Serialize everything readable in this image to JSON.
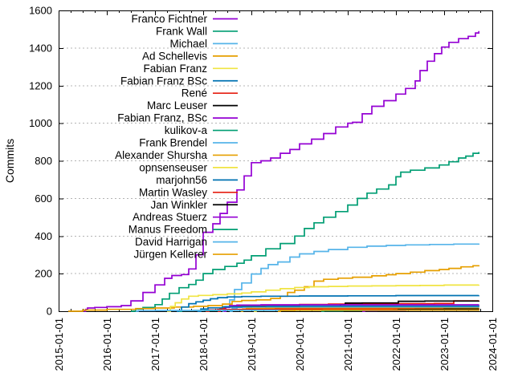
{
  "chart_data": {
    "type": "line",
    "title": "",
    "xlabel": "",
    "ylabel": "Commits",
    "background": "#ffffff",
    "axis_color": "#000000",
    "grid_color": "#b4b4b4",
    "grid": "horizontal-dotted",
    "legend_position": "top-left-inside",
    "ylim": [
      0,
      1600
    ],
    "y_ticks": [
      0,
      200,
      400,
      600,
      800,
      1000,
      1200,
      1400,
      1600
    ],
    "x_tick_years": [
      2015,
      2016,
      2017,
      2018,
      2019,
      2020,
      2021,
      2022,
      2023,
      2024
    ],
    "x_tick_labels": [
      "2015-01-01",
      "2016-01-01",
      "2017-01-01",
      "2018-01-01",
      "2019-01-01",
      "2020-01-01",
      "2021-01-01",
      "2022-01-01",
      "2023-01-01",
      "2024-01-01"
    ],
    "series": [
      {
        "name": "Franco Fichtner",
        "color": "#9400d3",
        "points": [
          [
            2015.52,
            0
          ],
          [
            2015.56,
            10
          ],
          [
            2015.6,
            17
          ],
          [
            2015.75,
            20
          ],
          [
            2016.0,
            24
          ],
          [
            2016.3,
            30
          ],
          [
            2016.5,
            55
          ],
          [
            2016.75,
            100
          ],
          [
            2017.0,
            140
          ],
          [
            2017.2,
            175
          ],
          [
            2017.35,
            190
          ],
          [
            2017.55,
            195
          ],
          [
            2017.7,
            225
          ],
          [
            2017.85,
            300
          ],
          [
            2018.0,
            420
          ],
          [
            2018.2,
            465
          ],
          [
            2018.35,
            520
          ],
          [
            2018.5,
            580
          ],
          [
            2018.7,
            645
          ],
          [
            2018.85,
            720
          ],
          [
            2019.0,
            790
          ],
          [
            2019.2,
            800
          ],
          [
            2019.4,
            815
          ],
          [
            2019.6,
            840
          ],
          [
            2019.8,
            860
          ],
          [
            2020.0,
            890
          ],
          [
            2020.25,
            915
          ],
          [
            2020.5,
            945
          ],
          [
            2020.75,
            980
          ],
          [
            2021.0,
            1000
          ],
          [
            2021.1,
            1005
          ],
          [
            2021.3,
            1050
          ],
          [
            2021.5,
            1090
          ],
          [
            2021.75,
            1120
          ],
          [
            2022.0,
            1155
          ],
          [
            2022.2,
            1185
          ],
          [
            2022.4,
            1225
          ],
          [
            2022.5,
            1280
          ],
          [
            2022.65,
            1330
          ],
          [
            2022.8,
            1370
          ],
          [
            2022.95,
            1405
          ],
          [
            2023.1,
            1430
          ],
          [
            2023.3,
            1450
          ],
          [
            2023.5,
            1462
          ],
          [
            2023.65,
            1480
          ],
          [
            2023.72,
            1490
          ]
        ]
      },
      {
        "name": "Frank Wall",
        "color": "#009e73",
        "points": [
          [
            2016.5,
            0
          ],
          [
            2016.6,
            12
          ],
          [
            2016.75,
            20
          ],
          [
            2017.0,
            35
          ],
          [
            2017.15,
            65
          ],
          [
            2017.3,
            95
          ],
          [
            2017.5,
            125
          ],
          [
            2017.7,
            142
          ],
          [
            2017.85,
            165
          ],
          [
            2018.0,
            200
          ],
          [
            2018.2,
            222
          ],
          [
            2018.45,
            238
          ],
          [
            2018.7,
            255
          ],
          [
            2018.85,
            272
          ],
          [
            2019.0,
            295
          ],
          [
            2019.3,
            332
          ],
          [
            2019.6,
            360
          ],
          [
            2019.9,
            400
          ],
          [
            2020.1,
            440
          ],
          [
            2020.3,
            470
          ],
          [
            2020.5,
            500
          ],
          [
            2020.75,
            530
          ],
          [
            2021.0,
            565
          ],
          [
            2021.2,
            600
          ],
          [
            2021.4,
            628
          ],
          [
            2021.6,
            650
          ],
          [
            2021.85,
            672
          ],
          [
            2022.0,
            715
          ],
          [
            2022.1,
            740
          ],
          [
            2022.3,
            750
          ],
          [
            2022.6,
            762
          ],
          [
            2022.9,
            778
          ],
          [
            2023.1,
            795
          ],
          [
            2023.3,
            815
          ],
          [
            2023.45,
            825
          ],
          [
            2023.6,
            840
          ],
          [
            2023.72,
            847
          ]
        ]
      },
      {
        "name": "Michael",
        "color": "#56b4e9",
        "points": [
          [
            2018.4,
            0
          ],
          [
            2018.45,
            25
          ],
          [
            2018.55,
            60
          ],
          [
            2018.65,
            115
          ],
          [
            2018.8,
            150
          ],
          [
            2019.0,
            198
          ],
          [
            2019.2,
            228
          ],
          [
            2019.35,
            248
          ],
          [
            2019.55,
            262
          ],
          [
            2019.8,
            288
          ],
          [
            2020.0,
            305
          ],
          [
            2020.3,
            318
          ],
          [
            2020.6,
            328
          ],
          [
            2021.0,
            340
          ],
          [
            2021.4,
            346
          ],
          [
            2021.8,
            350
          ],
          [
            2022.2,
            353
          ],
          [
            2022.7,
            355
          ],
          [
            2023.2,
            357
          ],
          [
            2023.72,
            360
          ]
        ]
      },
      {
        "name": "Ad Schellevis",
        "color": "#e69f00",
        "points": [
          [
            2015.2,
            0
          ],
          [
            2015.5,
            6
          ],
          [
            2016.0,
            10
          ],
          [
            2016.6,
            14
          ],
          [
            2017.0,
            17
          ],
          [
            2017.4,
            22
          ],
          [
            2017.8,
            26
          ],
          [
            2018.1,
            30
          ],
          [
            2018.4,
            38
          ],
          [
            2018.6,
            52
          ],
          [
            2018.8,
            57
          ],
          [
            2019.1,
            60
          ],
          [
            2019.4,
            68
          ],
          [
            2019.6,
            80
          ],
          [
            2019.75,
            100
          ],
          [
            2019.9,
            112
          ],
          [
            2020.1,
            130
          ],
          [
            2020.3,
            160
          ],
          [
            2020.5,
            170
          ],
          [
            2020.8,
            176
          ],
          [
            2021.1,
            181
          ],
          [
            2021.5,
            188
          ],
          [
            2021.8,
            194
          ],
          [
            2022.0,
            200
          ],
          [
            2022.3,
            208
          ],
          [
            2022.6,
            216
          ],
          [
            2022.9,
            222
          ],
          [
            2023.1,
            228
          ],
          [
            2023.35,
            236
          ],
          [
            2023.6,
            242
          ],
          [
            2023.72,
            245
          ]
        ]
      },
      {
        "name": "Fabian Franz",
        "color": "#f0e442",
        "points": [
          [
            2017.25,
            0
          ],
          [
            2017.32,
            25
          ],
          [
            2017.42,
            45
          ],
          [
            2017.55,
            65
          ],
          [
            2017.7,
            80
          ],
          [
            2017.9,
            84
          ],
          [
            2018.2,
            88
          ],
          [
            2018.5,
            92
          ],
          [
            2018.8,
            97
          ],
          [
            2019.0,
            103
          ],
          [
            2019.3,
            112
          ],
          [
            2019.6,
            120
          ],
          [
            2019.9,
            126
          ],
          [
            2020.2,
            130
          ],
          [
            2020.6,
            132
          ],
          [
            2021.0,
            134
          ],
          [
            2021.5,
            135
          ],
          [
            2022.0,
            136
          ],
          [
            2022.5,
            137
          ],
          [
            2023.0,
            139
          ],
          [
            2023.72,
            141
          ]
        ]
      },
      {
        "name": "Fabian Franz BSc",
        "color": "#0072b2",
        "points": [
          [
            2017.45,
            0
          ],
          [
            2017.55,
            22
          ],
          [
            2017.7,
            40
          ],
          [
            2017.85,
            50
          ],
          [
            2018.0,
            58
          ],
          [
            2018.15,
            66
          ],
          [
            2018.3,
            72
          ],
          [
            2018.5,
            76
          ],
          [
            2018.8,
            78
          ],
          [
            2019.2,
            80
          ],
          [
            2020.0,
            81
          ],
          [
            2021.0,
            82
          ],
          [
            2022.0,
            83
          ],
          [
            2023.72,
            84
          ]
        ]
      },
      {
        "name": "René",
        "color": "#e51e10",
        "points": [
          [
            2018.3,
            0
          ],
          [
            2018.35,
            15
          ],
          [
            2018.45,
            22
          ],
          [
            2018.6,
            26
          ],
          [
            2019.0,
            30
          ],
          [
            2019.5,
            33
          ],
          [
            2020.0,
            36
          ],
          [
            2020.6,
            38
          ],
          [
            2021.3,
            39
          ],
          [
            2022.0,
            40
          ],
          [
            2022.8,
            41
          ],
          [
            2023.2,
            55
          ],
          [
            2023.72,
            57
          ]
        ]
      },
      {
        "name": "Marc Leuser",
        "color": "#000000",
        "points": [
          [
            2020.75,
            0
          ],
          [
            2020.8,
            20
          ],
          [
            2020.85,
            35
          ],
          [
            2020.95,
            43
          ],
          [
            2021.3,
            44
          ],
          [
            2022.05,
            53
          ],
          [
            2022.6,
            54
          ],
          [
            2023.72,
            55
          ]
        ]
      },
      {
        "name": "Fabian Franz, BSc",
        "color": "#9400d3",
        "points": [
          [
            2018.42,
            0
          ],
          [
            2018.47,
            20
          ],
          [
            2018.55,
            30
          ],
          [
            2018.7,
            33
          ],
          [
            2019.2,
            34
          ],
          [
            2023.72,
            35
          ]
        ]
      },
      {
        "name": "kulikov-a",
        "color": "#009e73",
        "points": [
          [
            2020.45,
            0
          ],
          [
            2020.5,
            2
          ],
          [
            2020.9,
            4
          ],
          [
            2021.3,
            5
          ],
          [
            2021.8,
            6
          ],
          [
            2022.3,
            8
          ],
          [
            2022.8,
            10
          ],
          [
            2023.2,
            13
          ],
          [
            2023.72,
            15
          ]
        ]
      },
      {
        "name": "Frank Brendel",
        "color": "#56b4e9",
        "points": [
          [
            2018.55,
            0
          ],
          [
            2018.6,
            15
          ],
          [
            2018.7,
            21
          ],
          [
            2019.0,
            22
          ],
          [
            2020.0,
            23
          ],
          [
            2023.72,
            24
          ]
        ]
      },
      {
        "name": "Alexander Shursha",
        "color": "#e69f00",
        "points": [
          [
            2018.78,
            0
          ],
          [
            2018.82,
            12
          ],
          [
            2018.9,
            15
          ],
          [
            2019.3,
            16
          ],
          [
            2023.72,
            17
          ]
        ]
      },
      {
        "name": "opnsenseuser",
        "color": "#f0e442",
        "points": [
          [
            2019.05,
            0
          ],
          [
            2019.1,
            5
          ],
          [
            2019.3,
            7
          ],
          [
            2019.7,
            8
          ],
          [
            2023.72,
            9
          ]
        ]
      },
      {
        "name": "marjohn56",
        "color": "#0072b2",
        "points": [
          [
            2017.88,
            0
          ],
          [
            2017.95,
            12
          ],
          [
            2018.1,
            18
          ],
          [
            2018.4,
            23
          ],
          [
            2018.8,
            25
          ],
          [
            2019.3,
            26
          ],
          [
            2020.0,
            27
          ],
          [
            2023.72,
            28
          ]
        ]
      },
      {
        "name": "Martin Wasley",
        "color": "#e51e10",
        "points": [
          [
            2018.05,
            0
          ],
          [
            2018.12,
            7
          ],
          [
            2018.3,
            9
          ],
          [
            2018.7,
            10
          ],
          [
            2019.5,
            11
          ],
          [
            2023.72,
            12
          ]
        ]
      },
      {
        "name": "Jan Winkler",
        "color": "#000000",
        "points": [
          [
            2021.9,
            0
          ],
          [
            2021.95,
            6
          ],
          [
            2022.05,
            9
          ],
          [
            2022.4,
            10
          ],
          [
            2023.0,
            11
          ],
          [
            2023.72,
            11
          ]
        ]
      },
      {
        "name": "Andreas Stuerz",
        "color": "#9400d3",
        "points": [
          [
            2021.3,
            0
          ],
          [
            2021.35,
            3
          ],
          [
            2021.6,
            4
          ],
          [
            2022.2,
            5
          ],
          [
            2023.72,
            5
          ]
        ]
      },
      {
        "name": "Manus Freedom",
        "color": "#009e73",
        "points": [
          [
            2017.5,
            0
          ],
          [
            2017.55,
            3
          ],
          [
            2017.8,
            4
          ],
          [
            2018.3,
            5
          ],
          [
            2019.0,
            5
          ],
          [
            2023.72,
            6
          ]
        ]
      },
      {
        "name": "David Harrigan",
        "color": "#56b4e9",
        "points": [
          [
            2016.6,
            0
          ],
          [
            2016.65,
            3
          ],
          [
            2017.0,
            4
          ],
          [
            2018.0,
            5
          ],
          [
            2023.72,
            6
          ]
        ]
      },
      {
        "name": "Jürgen Kellerer",
        "color": "#e69f00",
        "points": [
          [
            2019.55,
            0
          ],
          [
            2019.6,
            4
          ],
          [
            2019.9,
            5
          ],
          [
            2020.5,
            6
          ],
          [
            2023.72,
            7
          ]
        ]
      }
    ]
  }
}
